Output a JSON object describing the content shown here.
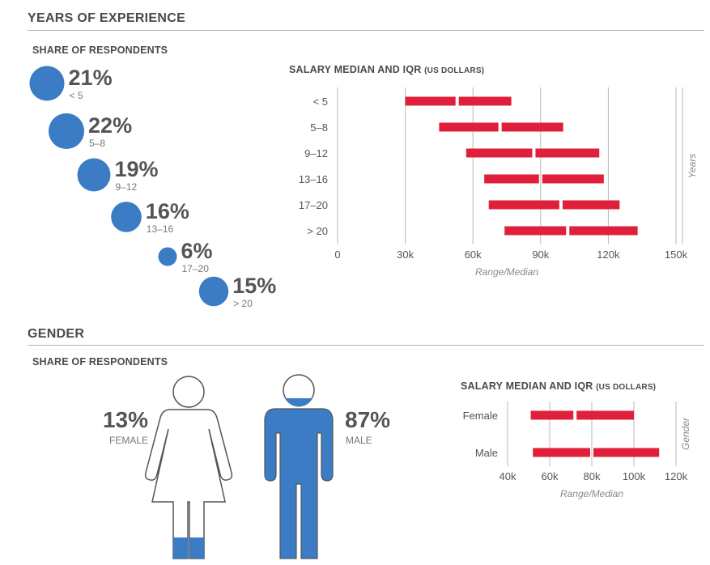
{
  "sections": {
    "experience_title": "YEARS OF EXPERIENCE",
    "gender_title": "GENDER"
  },
  "experience_share": {
    "title": "SHARE OF RESPONDENTS",
    "items": [
      {
        "label": "< 5",
        "pct": "21%",
        "value": 21
      },
      {
        "label": "5–8",
        "pct": "22%",
        "value": 22
      },
      {
        "label": "9–12",
        "pct": "19%",
        "value": 19
      },
      {
        "label": "13–16",
        "pct": "16%",
        "value": 16
      },
      {
        "label": "17–20",
        "pct": "6%",
        "value": 6
      },
      {
        "label": "> 20",
        "pct": "15%",
        "value": 15
      }
    ]
  },
  "experience_salary": {
    "title": "SALARY MEDIAN AND IQR",
    "title_unit": "(US DOLLARS)",
    "xlabel": "Range/Median",
    "ylabel": "Years"
  },
  "gender_share": {
    "title": "SHARE OF RESPONDENTS",
    "female": {
      "pct": "13%",
      "label": "FEMALE",
      "value": 13
    },
    "male": {
      "pct": "87%",
      "label": "MALE",
      "value": 87
    }
  },
  "gender_salary": {
    "title": "SALARY MEDIAN AND IQR",
    "title_unit": "(US DOLLARS)",
    "xlabel": "Range/Median",
    "ylabel": "Gender"
  },
  "chart_data": [
    {
      "type": "bar",
      "subtype": "range-median",
      "title": "SALARY MEDIAN AND IQR (US DOLLARS)",
      "xlabel": "Range/Median",
      "ylabel": "Years",
      "categories": [
        "< 5",
        "5–8",
        "9–12",
        "13–16",
        "17–20",
        "> 20"
      ],
      "q1": [
        30000,
        45000,
        57000,
        65000,
        67000,
        74000
      ],
      "median": [
        53000,
        72000,
        87000,
        90000,
        99000,
        102000
      ],
      "q3": [
        77000,
        100000,
        116000,
        118000,
        125000,
        133000
      ],
      "xticks": [
        "0",
        "30k",
        "60k",
        "90k",
        "120k",
        "150k"
      ],
      "xlim": [
        0,
        150000
      ],
      "grid": true,
      "color": "#e0203a"
    },
    {
      "type": "bar",
      "subtype": "range-median",
      "title": "SALARY MEDIAN AND IQR (US DOLLARS)",
      "xlabel": "Range/Median",
      "ylabel": "Gender",
      "categories": [
        "Female",
        "Male"
      ],
      "q1": [
        51000,
        52000
      ],
      "median": [
        72000,
        80000
      ],
      "q3": [
        100000,
        112000
      ],
      "xticks": [
        "40k",
        "60k",
        "80k",
        "100k",
        "120k"
      ],
      "xlim": [
        40000,
        120000
      ],
      "grid": true,
      "color": "#e0203a"
    }
  ],
  "colors": {
    "bubble": "#3b7cc4",
    "bar": "#e0203a",
    "grid": "#b8b8b8"
  }
}
